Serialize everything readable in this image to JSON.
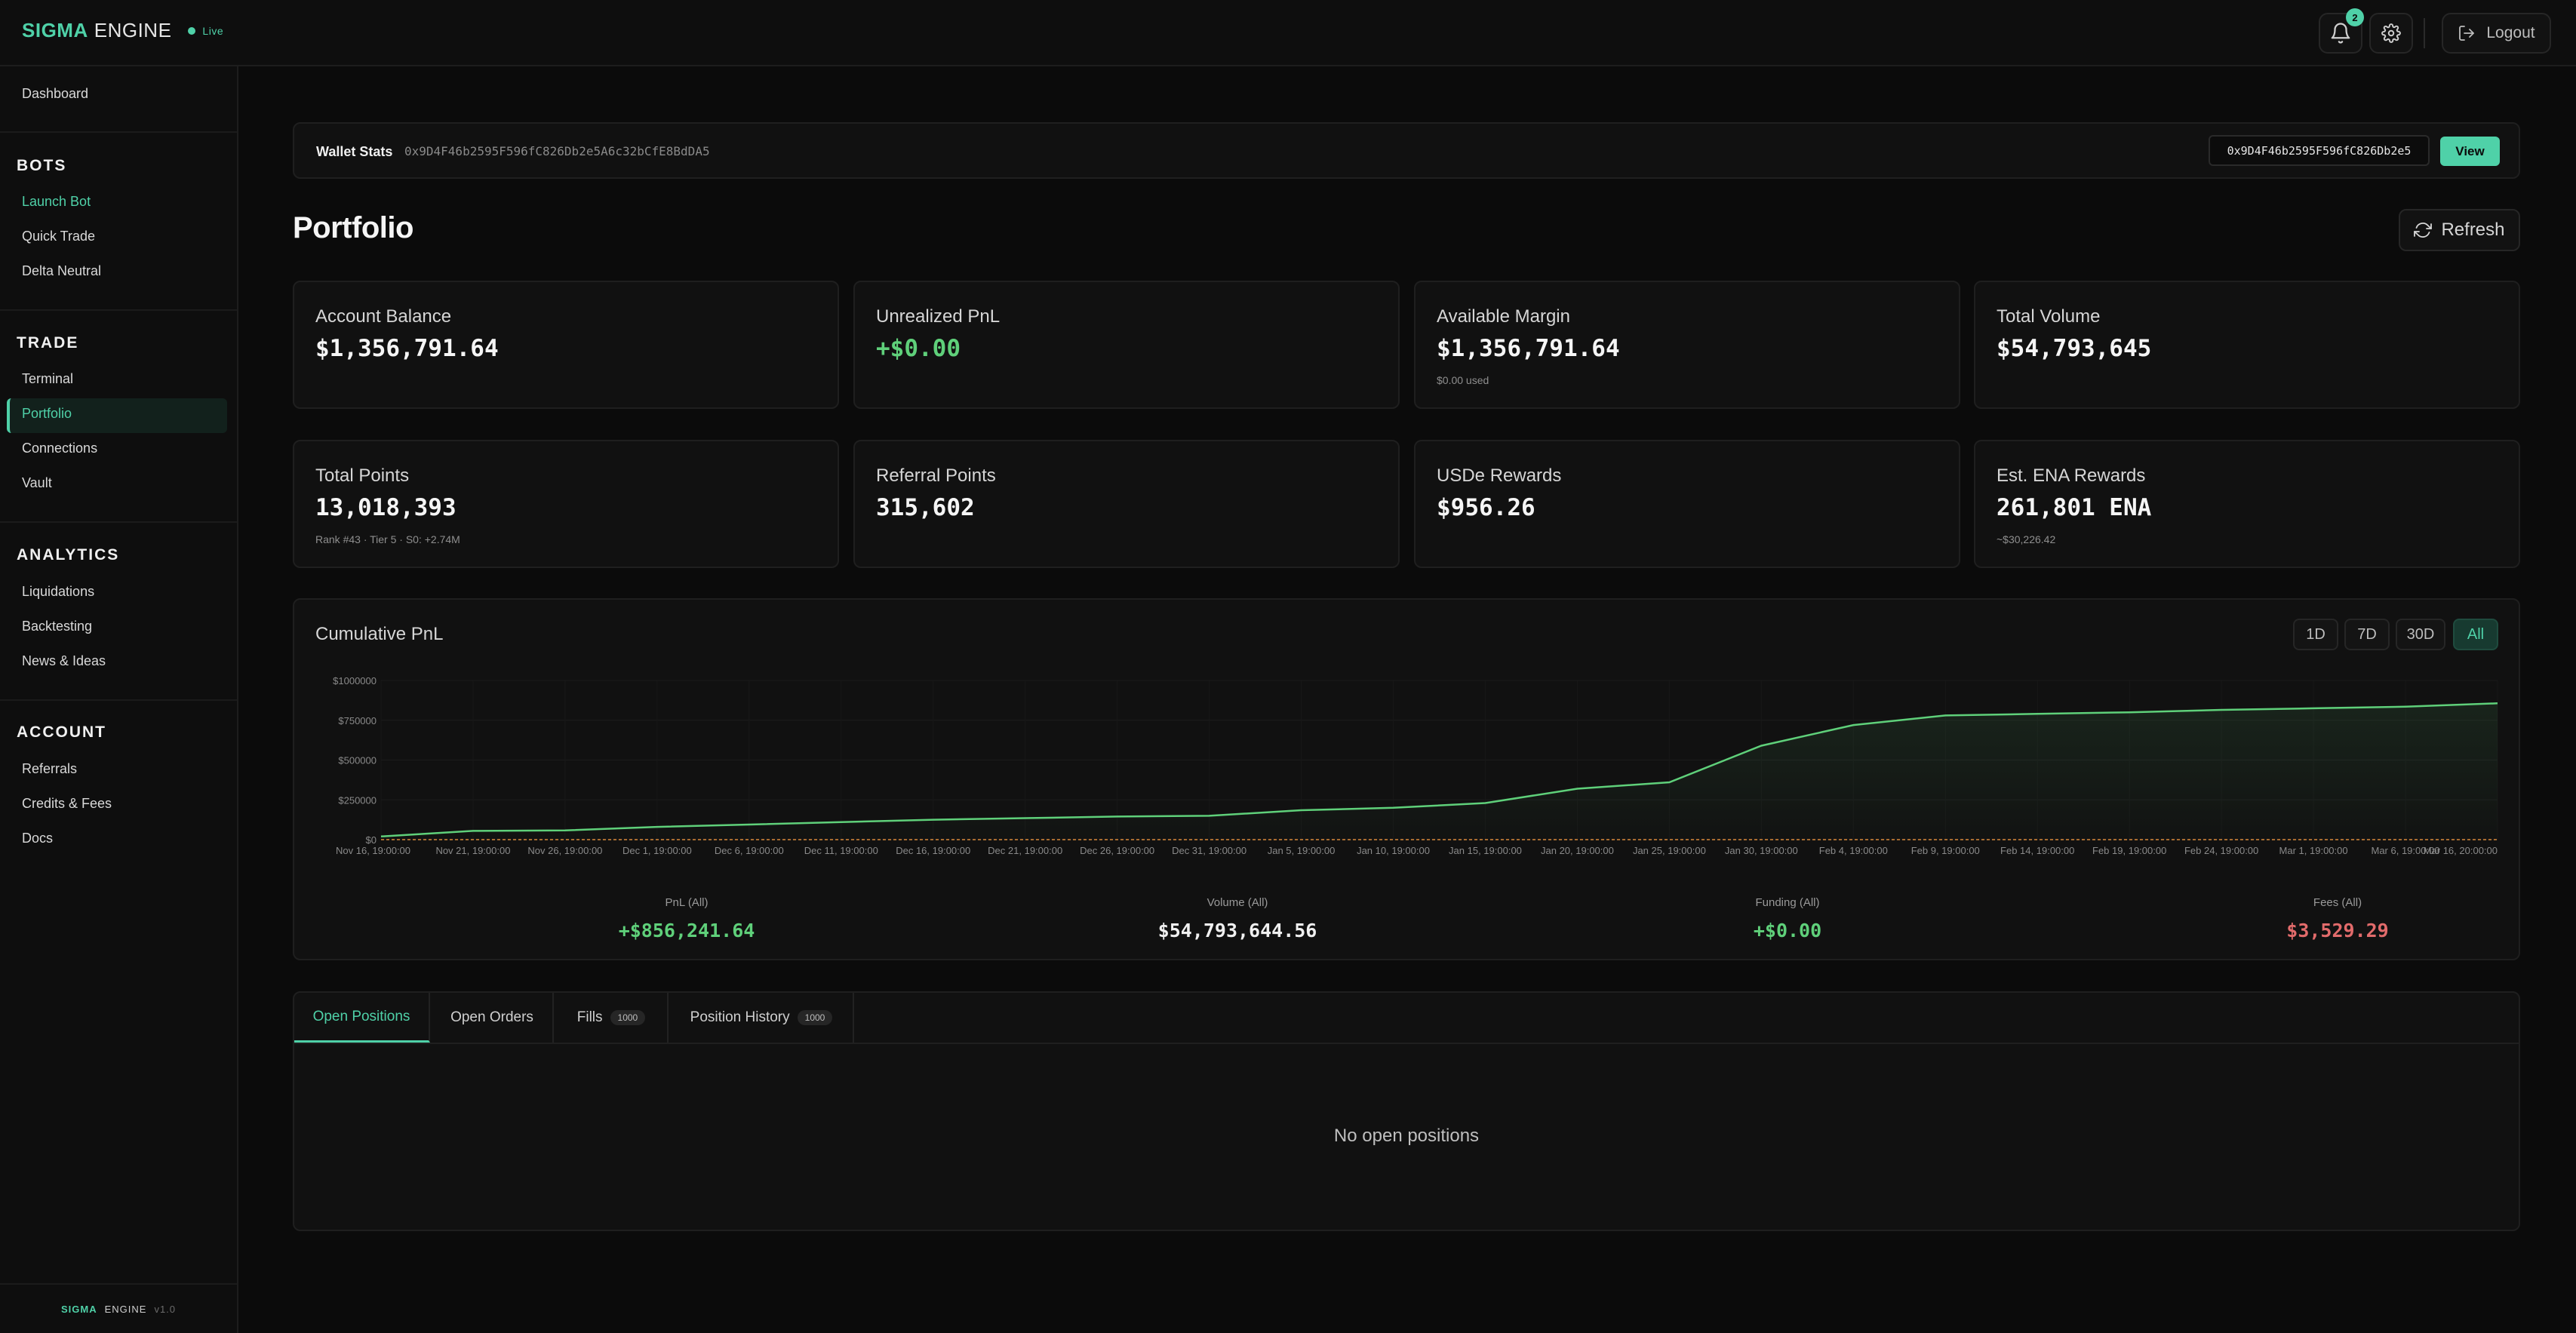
{
  "brand": {
    "primary": "SIGMA",
    "secondary": "ENGINE",
    "status": "Live"
  },
  "topbar": {
    "notifications_count": "2",
    "logout_label": "Logout"
  },
  "sidebar": {
    "dashboard": "Dashboard",
    "sections": [
      {
        "title": "BOTS",
        "items": [
          "Launch Bot",
          "Quick Trade",
          "Delta Neutral"
        ]
      },
      {
        "title": "TRADE",
        "items": [
          "Terminal",
          "Portfolio",
          "Connections",
          "Vault"
        ]
      },
      {
        "title": "ANALYTICS",
        "items": [
          "Liquidations",
          "Backtesting",
          "News & Ideas"
        ]
      },
      {
        "title": "ACCOUNT",
        "items": [
          "Referrals",
          "Credits & Fees",
          "Docs"
        ]
      }
    ],
    "footer": {
      "primary": "SIGMA",
      "secondary": "ENGINE",
      "version": "v1.0"
    }
  },
  "wallet": {
    "title": "Wallet Stats",
    "address": "0x9D4F46b2595F596fC826Db2e5A6c32bCfE8BdDA5",
    "input_value": "0x9D4F46b2595F596fC826Db2e5",
    "view_label": "View"
  },
  "portfolio": {
    "title": "Portfolio",
    "refresh_label": "Refresh",
    "stats_row1": [
      {
        "label": "Account Balance",
        "value": "$1,356,791.64",
        "sub": ""
      },
      {
        "label": "Unrealized PnL",
        "value": "+$0.00",
        "sub": ""
      },
      {
        "label": "Available Margin",
        "value": "$1,356,791.64",
        "sub": "$0.00 used"
      },
      {
        "label": "Total Volume",
        "value": "$54,793,645",
        "sub": ""
      }
    ],
    "stats_row2": [
      {
        "label": "Total Points",
        "value": "13,018,393",
        "sub": "Rank #43 · Tier 5 · S0: +2.74M"
      },
      {
        "label": "Referral Points",
        "value": "315,602",
        "sub": ""
      },
      {
        "label": "USDe Rewards",
        "value": "$956.26",
        "sub": ""
      },
      {
        "label": "Est. ENA Rewards",
        "value": "261,801 ENA",
        "sub": "~$30,226.42"
      }
    ]
  },
  "chart_section": {
    "title": "Cumulative PnL",
    "ranges": [
      "1D",
      "7D",
      "30D",
      "All"
    ],
    "active_range": "All",
    "summary": [
      {
        "label": "PnL (All)",
        "value": "+$856,241.64",
        "tone": "green"
      },
      {
        "label": "Volume (All)",
        "value": "$54,793,644.56",
        "tone": "white"
      },
      {
        "label": "Funding (All)",
        "value": "+$0.00",
        "tone": "green"
      },
      {
        "label": "Fees (All)",
        "value": "$3,529.29",
        "tone": "red"
      }
    ]
  },
  "chart_data": {
    "type": "area",
    "title": "Cumulative PnL",
    "xlabel": "",
    "ylabel": "",
    "ylim": [
      0,
      1000000
    ],
    "y_ticks": [
      "$0",
      "$250000",
      "$500000",
      "$750000",
      "$1000000"
    ],
    "x_ticks": [
      "Nov 16, 19:00:00",
      "Nov 21, 19:00:00",
      "Nov 26, 19:00:00",
      "Dec 1, 19:00:00",
      "Dec 6, 19:00:00",
      "Dec 11, 19:00:00",
      "Dec 16, 19:00:00",
      "Dec 21, 19:00:00",
      "Dec 26, 19:00:00",
      "Dec 31, 19:00:00",
      "Jan 5, 19:00:00",
      "Jan 10, 19:00:00",
      "Jan 15, 19:00:00",
      "Jan 20, 19:00:00",
      "Jan 25, 19:00:00",
      "Jan 30, 19:00:00",
      "Feb 4, 19:00:00",
      "Feb 9, 19:00:00",
      "Feb 14, 19:00:00",
      "Feb 19, 19:00:00",
      "Feb 24, 19:00:00",
      "Mar 1, 19:00:00",
      "Mar 6, 19:00:00",
      "Mar 16, 20:00:00"
    ],
    "x": [
      "Nov 16",
      "Nov 21",
      "Nov 26",
      "Dec 1",
      "Dec 6",
      "Dec 11",
      "Dec 16",
      "Dec 21",
      "Dec 26",
      "Dec 31",
      "Jan 5",
      "Jan 10",
      "Jan 15",
      "Jan 20",
      "Jan 25",
      "Jan 30",
      "Feb 4",
      "Feb 9",
      "Feb 14",
      "Feb 19",
      "Feb 24",
      "Mar 1",
      "Mar 6",
      "Mar 16"
    ],
    "series": [
      {
        "values": [
          20000,
          55000,
          58000,
          80000,
          95000,
          110000,
          125000,
          135000,
          145000,
          150000,
          185000,
          200000,
          230000,
          320000,
          360000,
          590000,
          720000,
          780000,
          790000,
          800000,
          815000,
          825000,
          835000,
          856241
        ],
        "color": "#5fd07a"
      },
      {
        "values": [
          0,
          0,
          0,
          0,
          0,
          0,
          0,
          0,
          0,
          0,
          0,
          0,
          0,
          0,
          0,
          0,
          0,
          0,
          0,
          0,
          0,
          0,
          0,
          0
        ],
        "color": "#d98a3a"
      }
    ],
    "grid": true
  },
  "positions": {
    "tabs": [
      {
        "label": "Open Positions",
        "count": ""
      },
      {
        "label": "Open Orders",
        "count": ""
      },
      {
        "label": "Fills",
        "count": "1000"
      },
      {
        "label": "Position History",
        "count": "1000"
      }
    ],
    "empty_text": "No open positions"
  },
  "colors": {
    "accent": "#4fd1a8",
    "positive": "#5fd07a",
    "negative": "#e26b6b",
    "background": "#0b0b0b"
  }
}
